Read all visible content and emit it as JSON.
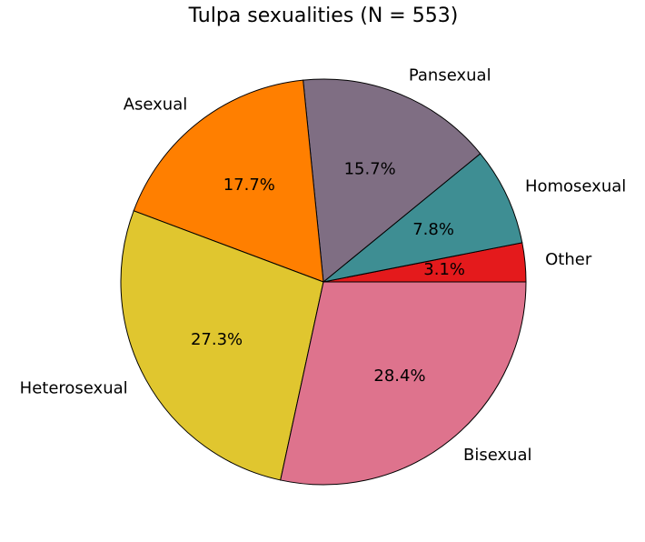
{
  "chart_data": {
    "type": "pie",
    "title": "Tulpa sexualities (N = 553)",
    "categories": [
      "Other",
      "Homosexual",
      "Pansexual",
      "Asexual",
      "Heterosexual",
      "Bisexual"
    ],
    "values": [
      3.1,
      7.8,
      15.7,
      17.7,
      27.3,
      28.4
    ],
    "value_labels": [
      "3.1%",
      "7.8%",
      "15.7%",
      "17.7%",
      "27.3%",
      "28.4%"
    ],
    "colors": [
      "#e41a1c",
      "#3e8e93",
      "#7f6e83",
      "#ff7f00",
      "#e0c62f",
      "#de738d"
    ]
  }
}
